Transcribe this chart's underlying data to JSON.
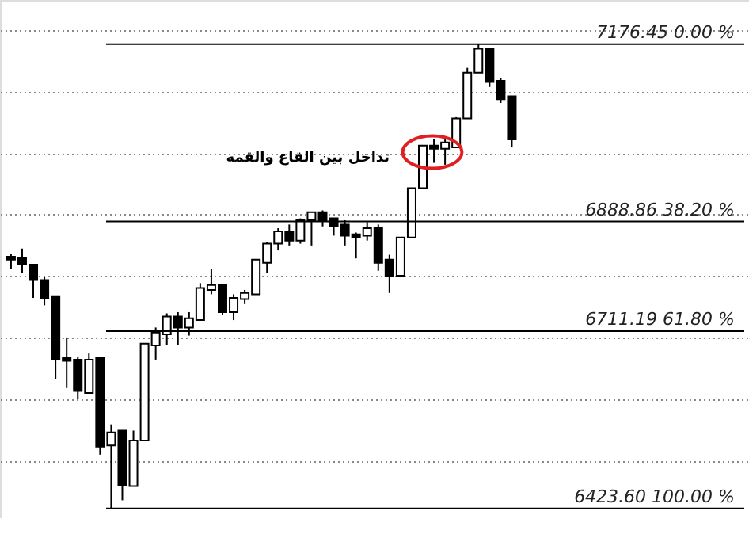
{
  "chart_data": {
    "type": "candlestick",
    "categories": [
      null,
      null,
      null,
      null,
      null,
      null,
      null,
      null,
      null,
      null,
      null,
      null,
      null,
      null,
      null,
      null,
      null,
      null,
      null,
      null,
      null,
      null,
      null,
      null,
      null,
      null,
      null,
      null,
      null,
      null,
      null,
      null,
      null,
      null,
      null,
      null,
      null,
      null,
      null,
      null,
      null,
      null,
      null,
      null,
      null,
      null
    ],
    "ohlc": [
      [
        6832,
        6837,
        6812,
        6827
      ],
      [
        6830,
        6845,
        6806,
        6819
      ],
      [
        6819,
        6819,
        6765,
        6794
      ],
      [
        6794,
        6799,
        6753,
        6765
      ],
      [
        6768,
        6768,
        6634,
        6665
      ],
      [
        6668,
        6701,
        6619,
        6663
      ],
      [
        6665,
        6670,
        6601,
        6614
      ],
      [
        6611,
        6675,
        6611,
        6665
      ],
      [
        6668,
        6668,
        6511,
        6524
      ],
      [
        6526,
        6560,
        6423.6,
        6547
      ],
      [
        6550,
        6550,
        6437,
        6462
      ],
      [
        6460,
        6550,
        6460,
        6534
      ],
      [
        6534,
        6691,
        6534,
        6691
      ],
      [
        6688,
        6717,
        6665,
        6709
      ],
      [
        6706,
        6740,
        6688,
        6735
      ],
      [
        6735,
        6742,
        6688,
        6717
      ],
      [
        6717,
        6742,
        6704,
        6732
      ],
      [
        6729,
        6789,
        6729,
        6781
      ],
      [
        6778,
        6812,
        6771,
        6786
      ],
      [
        6786,
        6786,
        6737,
        6742
      ],
      [
        6742,
        6771,
        6729,
        6765
      ],
      [
        6763,
        6778,
        6755,
        6773
      ],
      [
        6771,
        6827,
        6771,
        6827
      ],
      [
        6822,
        6855,
        6806,
        6853
      ],
      [
        6853,
        6878,
        6842,
        6873
      ],
      [
        6873,
        6884,
        6850,
        6858
      ],
      [
        6858,
        6894,
        6853,
        6891
      ],
      [
        6891,
        6904,
        6850,
        6904
      ],
      [
        6904,
        6907,
        6881,
        6891
      ],
      [
        6894,
        6894,
        6866,
        6881
      ],
      [
        6884,
        6891,
        6850,
        6866
      ],
      [
        6868,
        6871,
        6829,
        6863
      ],
      [
        6866,
        6888,
        6858,
        6878
      ],
      [
        6878,
        6884,
        6809,
        6822
      ],
      [
        6827,
        6835,
        6773,
        6801
      ],
      [
        6801,
        6863,
        6801,
        6863
      ],
      [
        6863,
        6943,
        6863,
        6943
      ],
      [
        6943,
        7012,
        6943,
        7012
      ],
      [
        7012,
        7022,
        6984,
        7007
      ],
      [
        7007,
        7022,
        6981,
        7017
      ],
      [
        7009,
        7058,
        7009,
        7056
      ],
      [
        7056,
        7138,
        7056,
        7130
      ],
      [
        7130,
        7176.45,
        7130,
        7169
      ],
      [
        7169,
        7169,
        7107,
        7115
      ],
      [
        7117,
        7122,
        7081,
        7087
      ],
      [
        7092,
        7092,
        7009,
        7022
      ]
    ],
    "ylim": [
      6408,
      7248
    ],
    "yticks": [
      {
        "value": 6500,
        "label": null
      },
      {
        "value": 6600,
        "label": null
      },
      {
        "value": 6700,
        "label": null
      },
      {
        "value": 6800,
        "label": null
      },
      {
        "value": 6900,
        "label": null
      },
      {
        "value": 7000,
        "label": null
      },
      {
        "value": 7100,
        "label": null
      },
      {
        "value": 7200,
        "label": null
      }
    ],
    "grid": "y",
    "ref_lines": [
      {
        "axis": "y",
        "value": 7176.45,
        "label": "7176.45 0.00 %",
        "color": "#000000"
      },
      {
        "axis": "y",
        "value": 6888.86,
        "label": "6888.86 38.20 %",
        "color": "#000000"
      },
      {
        "axis": "y",
        "value": 6711.19,
        "label": "6711.19 61.80 %",
        "color": "#000000"
      },
      {
        "axis": "y",
        "value": 6423.6,
        "label": "6423.60 100.00 %",
        "color": "#000000"
      }
    ],
    "annotations": [
      "تداخل بين القاع والقمه"
    ]
  }
}
